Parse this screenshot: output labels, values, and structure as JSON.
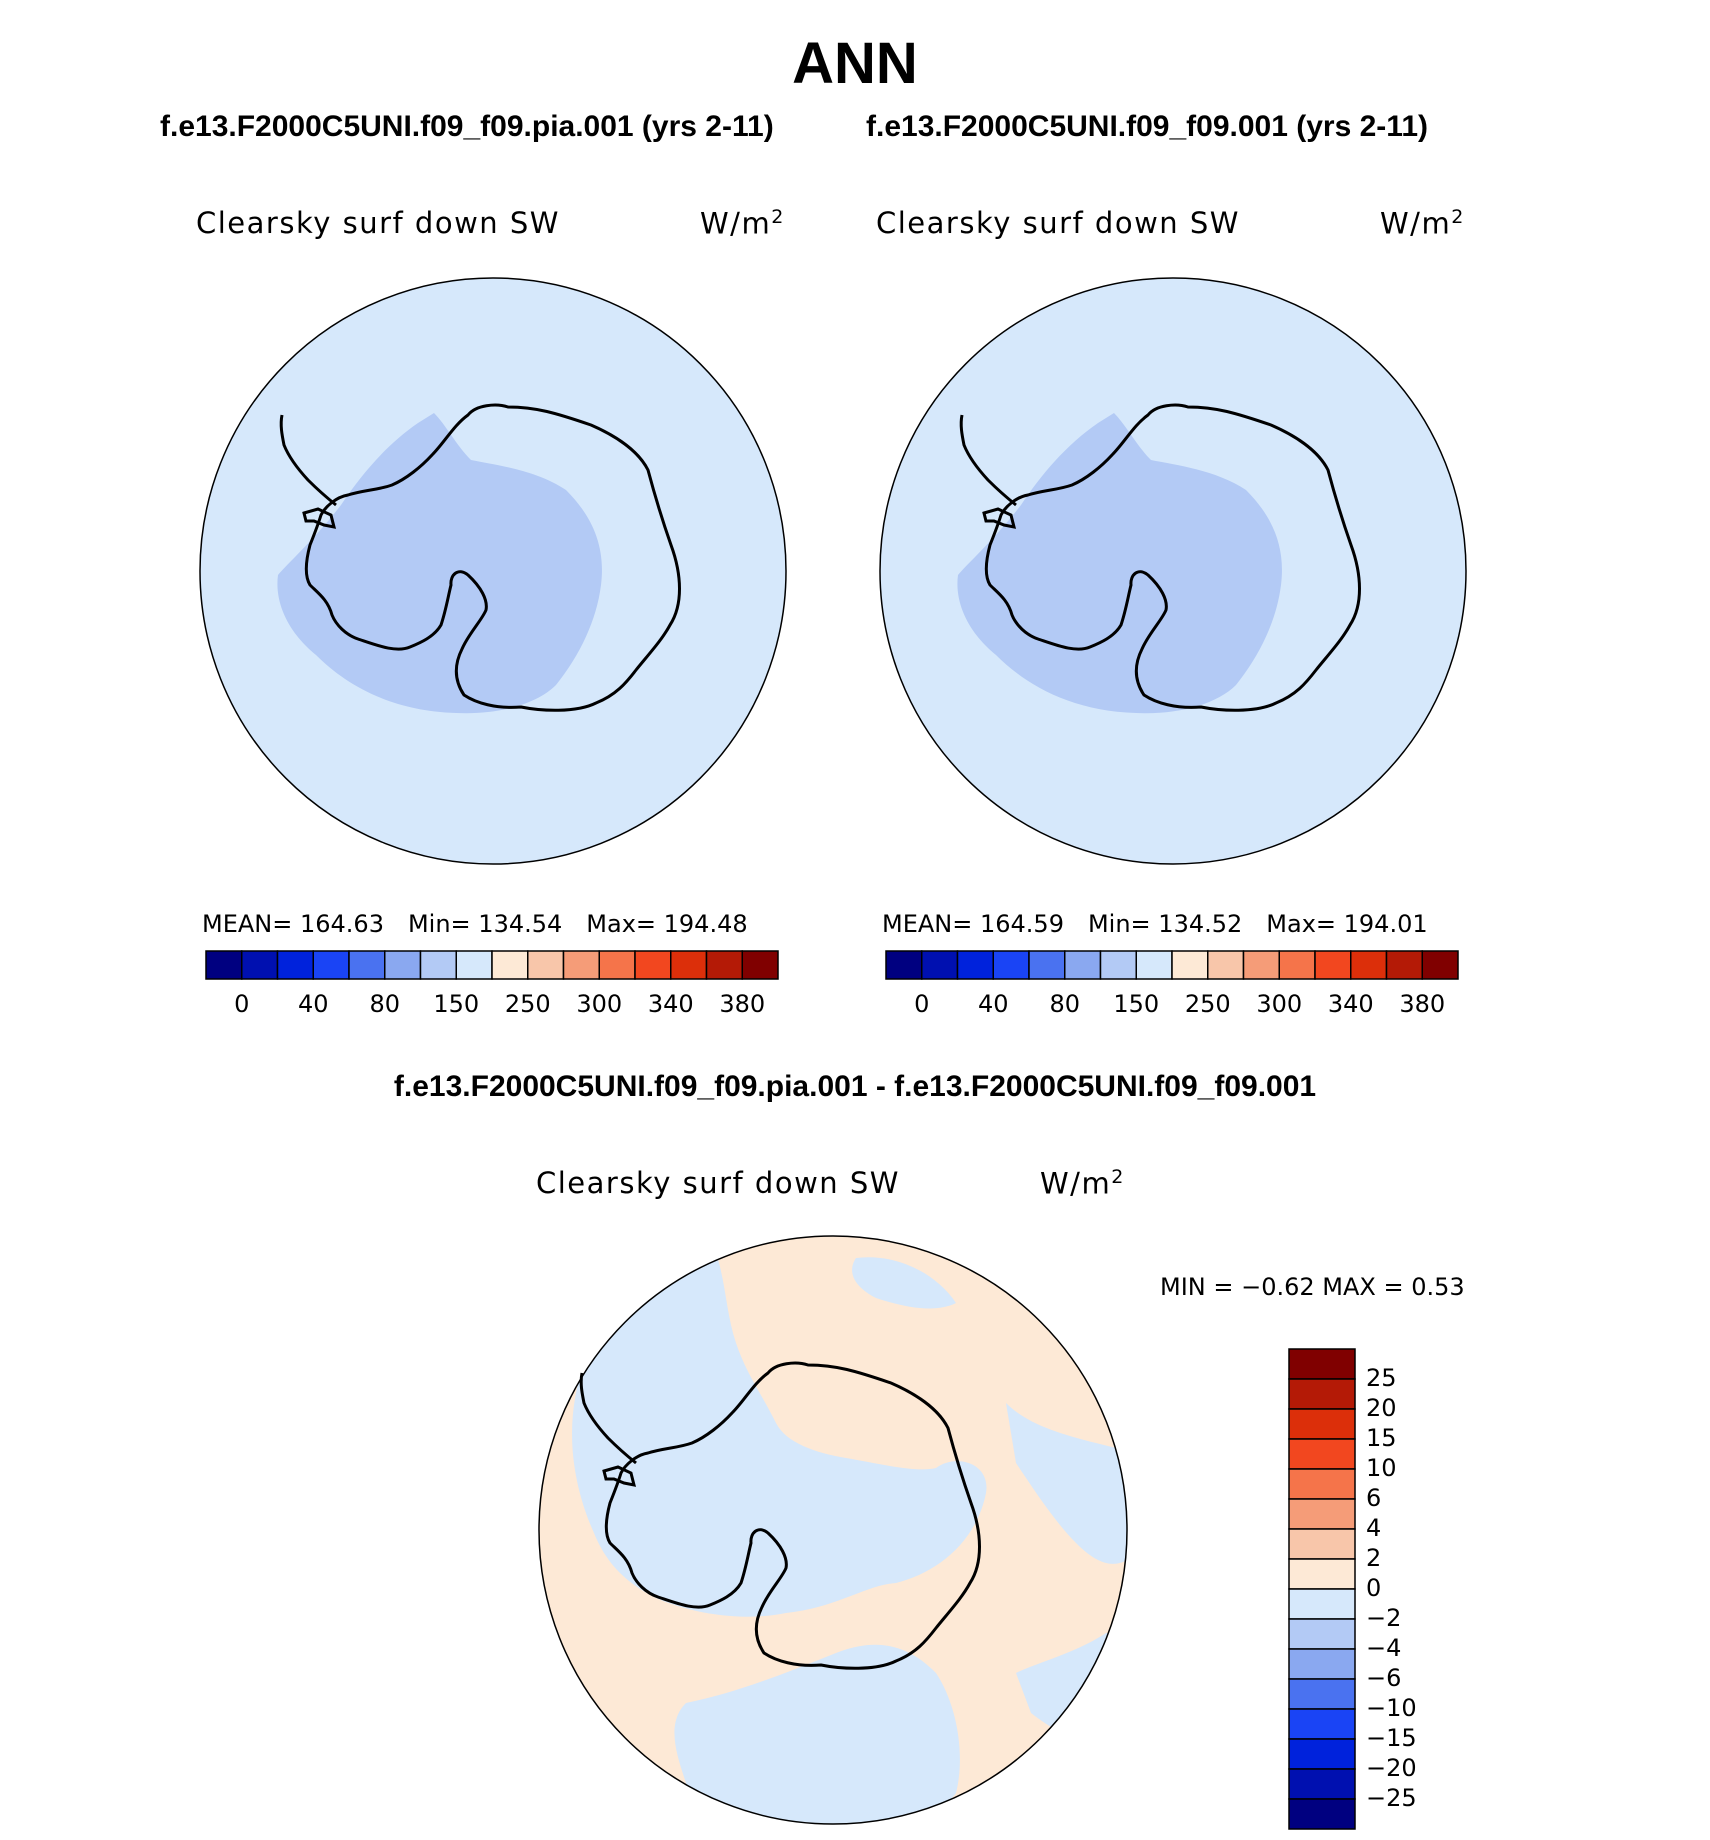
{
  "title": "ANN",
  "panels": [
    {
      "case": "f.e13.F2000C5UNI.f09_f09.pia.001 (yrs 2-11)",
      "variable": "Clearsky surf down SW",
      "units": "W/m",
      "units_exp": "2",
      "stats": {
        "mean": "MEAN=  164.63",
        "min": "Min=  134.54",
        "max": "Max=  194.48"
      }
    },
    {
      "case": "f.e13.F2000C5UNI.f09_f09.001 (yrs 2-11)",
      "variable": "Clearsky surf down SW",
      "units": "W/m",
      "units_exp": "2",
      "stats": {
        "mean": "MEAN=  164.59",
        "min": "Min=  134.52",
        "max": "Max=  194.01"
      }
    }
  ],
  "colorbar_h": {
    "colors": [
      "#000080",
      "#0010b0",
      "#0022dc",
      "#1a44f5",
      "#4a72f0",
      "#8aa8f0",
      "#b3caf5",
      "#d6e8fb",
      "#fde9d6",
      "#f8c6aa",
      "#f59c78",
      "#f5744a",
      "#f2471f",
      "#dc2f0a",
      "#b41a06",
      "#800000"
    ],
    "labels": [
      "0",
      "40",
      "80",
      "150",
      "250",
      "300",
      "340",
      "380"
    ]
  },
  "diff": {
    "case": "f.e13.F2000C5UNI.f09_f09.pia.001 - f.e13.F2000C5UNI.f09_f09.001",
    "variable": "Clearsky surf down SW",
    "units": "W/m",
    "units_exp": "2",
    "minmax": "MIN =   −0.62  MAX =     0.53"
  },
  "colorbar_v": {
    "colors": [
      "#800000",
      "#b41a06",
      "#dc2f0a",
      "#f2471f",
      "#f5744a",
      "#f59c78",
      "#f8c6aa",
      "#fde9d6",
      "#d6e8fb",
      "#b3caf5",
      "#8aa8f0",
      "#4a72f0",
      "#1a44f5",
      "#0022dc",
      "#0010b0",
      "#000080"
    ],
    "labels": [
      "25",
      "20",
      "15",
      "10",
      "6",
      "4",
      "2",
      "0",
      "−2",
      "−4",
      "−6",
      "−10",
      "−15",
      "−20",
      "−25"
    ]
  },
  "colors": {
    "ocean_fill": "#d6e8fb",
    "low_fill": "#b3caf5",
    "pos_fill": "#fde9d6"
  }
}
